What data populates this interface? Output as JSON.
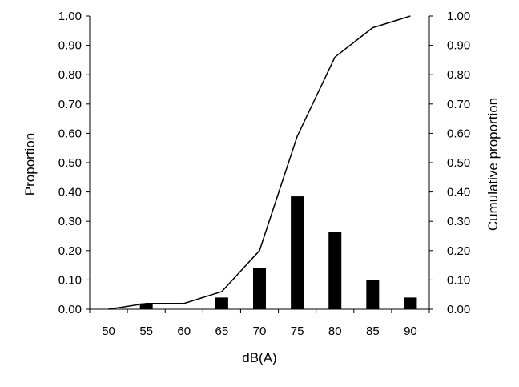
{
  "chart_data": {
    "type": "bar",
    "title": "",
    "xlabel": "dB(A)",
    "ylabel": "Proportion",
    "y2label": "Cumulative proportion",
    "categories": [
      "50",
      "55",
      "60",
      "65",
      "70",
      "75",
      "80",
      "85",
      "90"
    ],
    "x": [
      50,
      55,
      60,
      65,
      70,
      75,
      80,
      85,
      90
    ],
    "series": [
      {
        "type": "bar",
        "axis": "left",
        "values": [
          0.0,
          0.02,
          0.0,
          0.04,
          0.14,
          0.385,
          0.265,
          0.1,
          0.04
        ]
      },
      {
        "type": "line",
        "axis": "right",
        "values": [
          0.0,
          0.02,
          0.02,
          0.06,
          0.2,
          0.59,
          0.86,
          0.96,
          1.0
        ]
      }
    ],
    "ylim": [
      0,
      1
    ],
    "y2lim": [
      0,
      1
    ],
    "xlim": [
      47.5,
      92.5
    ],
    "yticks": [
      "0.00",
      "0.10",
      "0.20",
      "0.30",
      "0.40",
      "0.50",
      "0.60",
      "0.70",
      "0.80",
      "0.90",
      "1.00"
    ],
    "y2ticks": [
      "0.00",
      "0.10",
      "0.20",
      "0.30",
      "0.40",
      "0.50",
      "0.60",
      "0.70",
      "0.80",
      "0.90",
      "1.00"
    ],
    "grid": false,
    "legend": "none",
    "colors": {
      "bars": "#000000",
      "line": "#000000",
      "axes": "#000000"
    }
  }
}
